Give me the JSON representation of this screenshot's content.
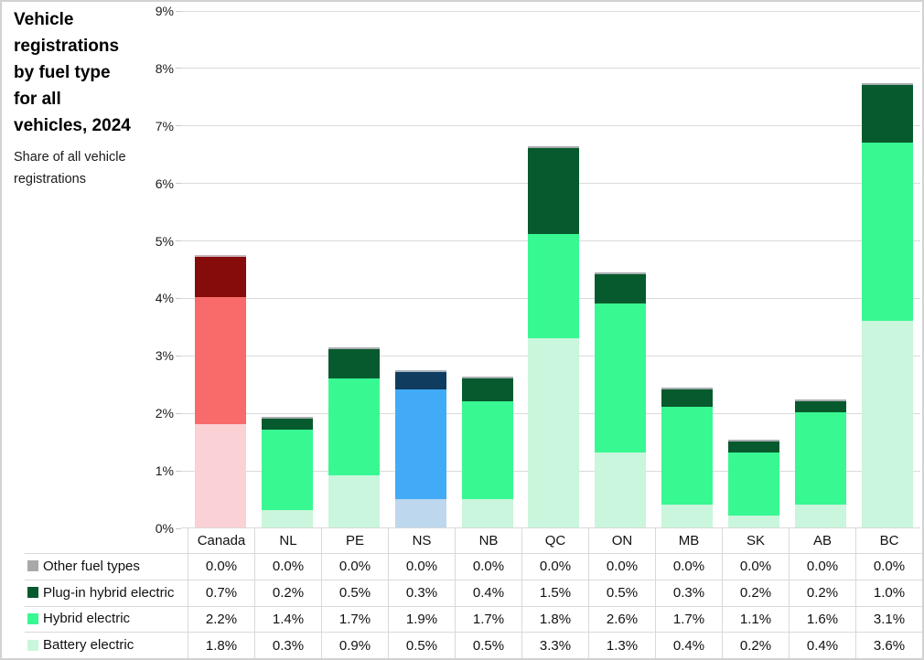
{
  "header": {
    "title": "Vehicle registrations by fuel type for all vehicles, 2024",
    "title_lines": [
      "Vehicle",
      "registrations",
      "by fuel type",
      "for all",
      "vehicles, 2024"
    ],
    "subtitle": "Share of all vehicle registrations",
    "subtitle_lines": [
      "Share of all vehicle",
      "registrations"
    ]
  },
  "chart_data": {
    "type": "bar",
    "stacked": true,
    "title": "Vehicle registrations by fuel type for all vehicles, 2024",
    "subtitle": "Share of all vehicle registrations",
    "categories": [
      "Canada",
      "NL",
      "PE",
      "NS",
      "NB",
      "QC",
      "ON",
      "MB",
      "SK",
      "AB",
      "BC"
    ],
    "series": [
      {
        "name": "Other fuel types",
        "values": [
          0.0,
          0.0,
          0.0,
          0.0,
          0.0,
          0.0,
          0.0,
          0.0,
          0.0,
          0.0,
          0.0
        ]
      },
      {
        "name": "Plug-in hybrid electric",
        "values": [
          0.7,
          0.2,
          0.5,
          0.3,
          0.4,
          1.5,
          0.5,
          0.3,
          0.2,
          0.2,
          1.0
        ]
      },
      {
        "name": "Hybrid electric",
        "values": [
          2.2,
          1.4,
          1.7,
          1.9,
          1.7,
          1.8,
          2.6,
          1.7,
          1.1,
          1.6,
          3.1
        ]
      },
      {
        "name": "Battery electric",
        "values": [
          1.8,
          0.3,
          0.9,
          0.5,
          0.5,
          3.3,
          1.3,
          0.4,
          0.2,
          0.4,
          3.6
        ]
      }
    ],
    "ylim": [
      0,
      9
    ],
    "yticks": [
      "0%",
      "1%",
      "2%",
      "3%",
      "4%",
      "5%",
      "6%",
      "7%",
      "8%",
      "9%"
    ],
    "ylabel": "Share of all vehicle registrations",
    "xlabel": "",
    "grid": true,
    "legend_position": "table-left",
    "value_format": "one-decimal-percent",
    "highlight": {
      "Canada": "red",
      "NS": "blue",
      "default": "green"
    }
  },
  "colors": {
    "schemes": {
      "green": {
        "battery": "#C9F6DC",
        "hybrid": "#38F892",
        "plugin": "#075A2D",
        "other": "#A6ADB0"
      },
      "red": {
        "battery": "#FAD1D5",
        "hybrid": "#F96A6A",
        "plugin": "#860B0B",
        "other": "#C9B6B8"
      },
      "blue": {
        "battery": "#BDD7EE",
        "hybrid": "#41ABF7",
        "plugin": "#0F3C5F",
        "other": "#A6B4C0"
      }
    },
    "legend_swatches": [
      "#A9A9A9",
      "#075A2D",
      "#38F892",
      "#C9F6DC"
    ],
    "gridline": "#DADADA",
    "table_line": "#D9D9D9",
    "border": "#D2D2D2",
    "text": "#000000"
  }
}
